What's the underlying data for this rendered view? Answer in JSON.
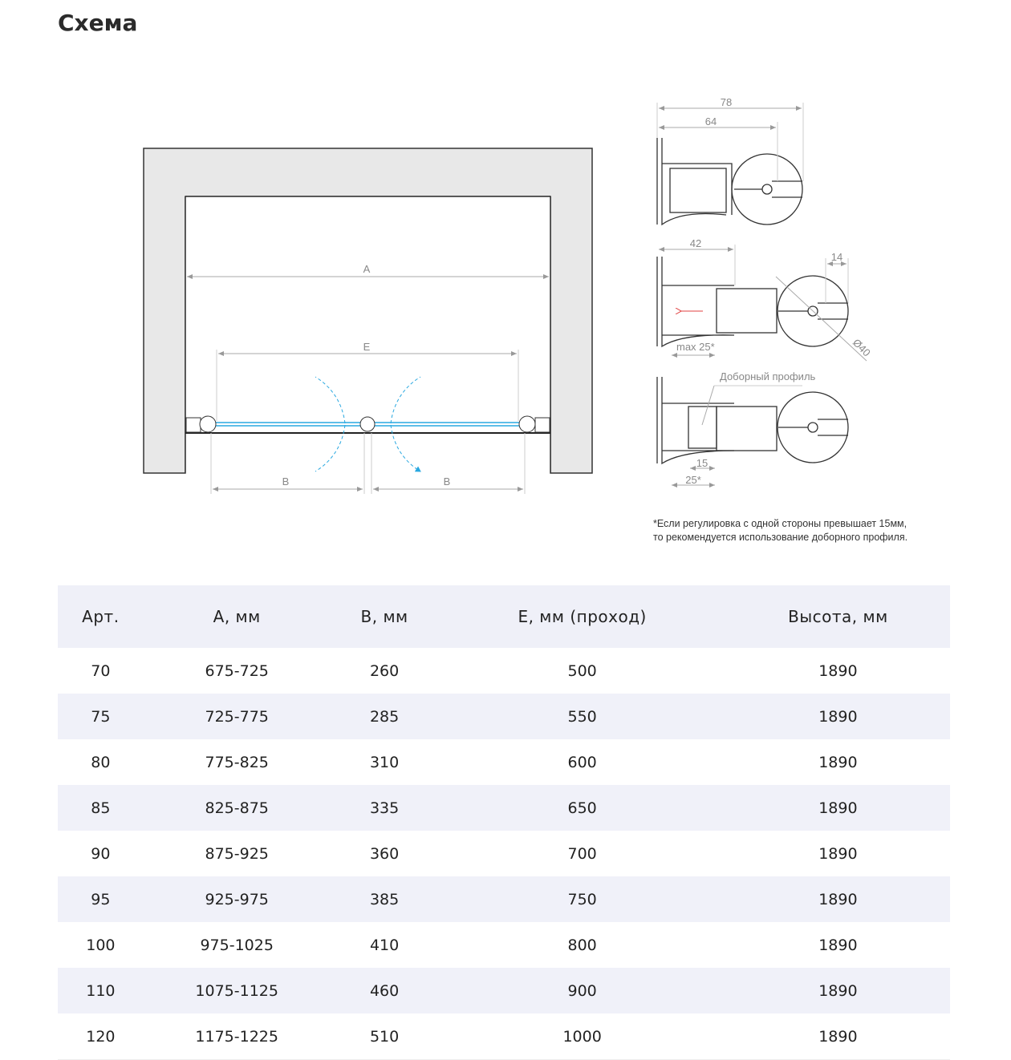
{
  "title": "Схема",
  "diagram": {
    "labels": {
      "A": "A",
      "E": "E",
      "B1": "B",
      "B2": "B"
    },
    "profile_labels": {
      "d78": "78",
      "d64": "64",
      "d42": "42",
      "d14": "14",
      "max25": "max 25*",
      "d40": "Ø40",
      "extra_profile": "Доборный профиль",
      "d15": "15",
      "d25": "25*"
    },
    "colors": {
      "glass": "#29a8e0",
      "wall": "#e8e8e8",
      "arrow": "#e04040"
    }
  },
  "note": [
    "*Если регулировка с одной стороны превышает 15мм,",
    "то рекомендуется использование доборного профиля."
  ],
  "table": {
    "headers": [
      "Арт.",
      "A, мм",
      "B, мм",
      "E, мм (проход)",
      "Высота, мм"
    ],
    "rows": [
      [
        "70",
        "675-725",
        "260",
        "500",
        "1890"
      ],
      [
        "75",
        "725-775",
        "285",
        "550",
        "1890"
      ],
      [
        "80",
        "775-825",
        "310",
        "600",
        "1890"
      ],
      [
        "85",
        "825-875",
        "335",
        "650",
        "1890"
      ],
      [
        "90",
        "875-925",
        "360",
        "700",
        "1890"
      ],
      [
        "95",
        "925-975",
        "385",
        "750",
        "1890"
      ],
      [
        "100",
        "975-1025",
        "410",
        "800",
        "1890"
      ],
      [
        "110",
        "1075-1125",
        "460",
        "900",
        "1890"
      ],
      [
        "120",
        "1175-1225",
        "510",
        "1000",
        "1890"
      ]
    ]
  }
}
